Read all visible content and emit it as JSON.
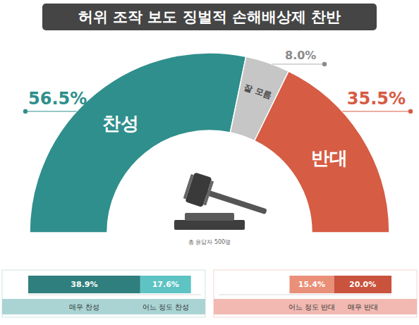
{
  "chart_data": [
    {
      "type": "donut",
      "title": "허위 조작 보도 징벌적 손해배상제 찬반",
      "categories": [
        "찬성",
        "잘 모름",
        "반대"
      ],
      "values": [
        56.5,
        8.0,
        35.5
      ],
      "value_labels": [
        "56.5%",
        "8.0%",
        "35.5%"
      ],
      "colors": [
        "#2f8f8c",
        "#c6c6c6",
        "#d65c44"
      ],
      "data_labels": true,
      "annotations": [
        "총 응답자 500명"
      ]
    },
    {
      "type": "bar",
      "orientation": "horizontal",
      "stacked": true,
      "data_labels": true,
      "tick_labels": false,
      "legend": "bottom",
      "categories": [
        null
      ],
      "xlim": [
        0,
        60
      ],
      "series": [
        {
          "name": "매우 찬성",
          "color": "#2e7f7d",
          "values": [
            38.9
          ],
          "value_labels": [
            "38.9%"
          ]
        },
        {
          "name": "어느 정도 찬성",
          "color": "#5ec3c3",
          "values": [
            17.6
          ],
          "value_labels": [
            "17.6%"
          ]
        }
      ]
    },
    {
      "type": "bar",
      "orientation": "horizontal",
      "stacked": true,
      "data_labels": true,
      "tick_labels": false,
      "legend": "bottom",
      "categories": [
        null
      ],
      "xlim": [
        60,
        0
      ],
      "series": [
        {
          "name": "매우 반대",
          "color": "#c9533d",
          "values": [
            20.0
          ],
          "value_labels": [
            "20.0%"
          ]
        },
        {
          "name": "어느 정도 반대",
          "color": "#ea8f78",
          "values": [
            15.4
          ],
          "value_labels": [
            "15.4%"
          ]
        }
      ]
    }
  ]
}
